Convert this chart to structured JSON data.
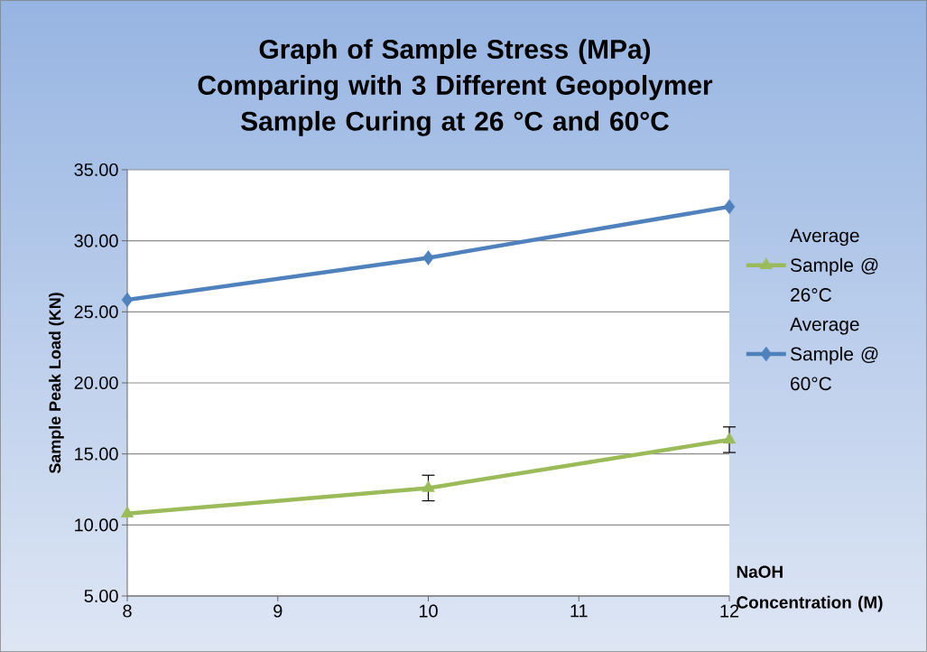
{
  "chart_data": {
    "type": "line",
    "title": "Graph of Sample Stress (MPa) Comparing with 3 Different Geopolymer  Sample Curing at 26 °C and 60°C",
    "xlabel": "NaOH Concentration (M)",
    "ylabel": "Sample Peak Load (KN)",
    "x": [
      8,
      10,
      12
    ],
    "series": [
      {
        "name": "Average Sample @ 26°C",
        "color": "#9bbb59",
        "marker": "triangle",
        "values": [
          10.8,
          12.6,
          16.0
        ],
        "errors": [
          null,
          0.9,
          0.9
        ]
      },
      {
        "name": "Average Sample @ 60°C",
        "color": "#4f81bd",
        "marker": "diamond",
        "values": [
          25.85,
          28.8,
          32.4
        ]
      }
    ],
    "xlim": [
      8,
      12
    ],
    "xticks": [
      8,
      9,
      10,
      11,
      12
    ],
    "ylim": [
      5,
      35
    ],
    "yticks": [
      {
        "value": 5,
        "label": "5.00"
      },
      {
        "value": 10,
        "label": "10.00"
      },
      {
        "value": 15,
        "label": "15.00"
      },
      {
        "value": 20,
        "label": "20.00"
      },
      {
        "value": 25,
        "label": "25.00"
      },
      {
        "value": 30,
        "label": "30.00"
      },
      {
        "value": 35,
        "label": "35.00"
      }
    ],
    "grid": "y",
    "legend": "right",
    "line_style": "solid"
  }
}
